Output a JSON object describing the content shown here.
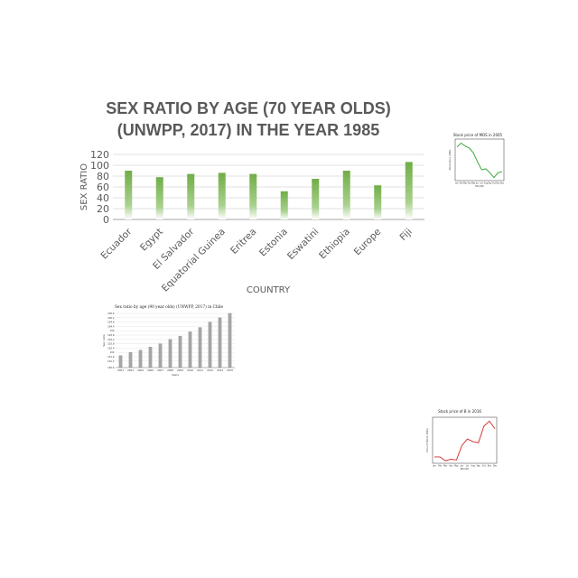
{
  "chart_data": [
    {
      "type": "bar",
      "title_line1": "SEX RATIO BY AGE (70 YEAR OLDS)",
      "title_line2": "(UNWPP, 2017) IN THE YEAR 1985",
      "xlabel": "COUNTRY",
      "ylabel": "SEX RATIO",
      "categories": [
        "Ecuador",
        "Egypt",
        "El Salvador",
        "Equatorial Guinea",
        "Eritrea",
        "Estonia",
        "Eswatini",
        "Ethiopia",
        "Europe",
        "Fiji"
      ],
      "values": [
        90,
        78,
        84,
        86,
        84,
        52,
        75,
        90,
        63,
        106
      ],
      "ylim": [
        0,
        120
      ],
      "yticks": [
        "0",
        "20",
        "40",
        "60",
        "80",
        "100",
        "120"
      ],
      "grid": true,
      "color": "#70ad47"
    },
    {
      "type": "line",
      "title": "Stock price of MOS in 2005",
      "xlabel": "Month",
      "ylabel": "Stock price (USD)",
      "x": [
        "Jan",
        "Feb",
        "Mar",
        "Apr",
        "May",
        "Jun",
        "Jul",
        "Aug",
        "Sep",
        "Oct",
        "Nov",
        "Dec"
      ],
      "values": [
        18.2,
        18.6,
        18.3,
        18.1,
        17.6,
        16.7,
        15.9,
        16.0,
        15.6,
        15.1,
        15.6,
        15.7
      ],
      "ylim": [
        14.8,
        19.0
      ],
      "color": "#2ca02c"
    },
    {
      "type": "bar",
      "title": "Sex ratio by age (90 year olds) (UNWPP, 2017) in Chile",
      "xlabel": "Years",
      "ylabel": "Sex ratio",
      "categories": [
        "2001",
        "2003",
        "2004",
        "2006",
        "2007",
        "2008",
        "2009",
        "2010",
        "2011",
        "2012",
        "2013",
        "2015"
      ],
      "values": [
        101.7,
        102.0,
        102.2,
        102.5,
        102.8,
        103.2,
        103.5,
        103.9,
        104.3,
        104.8,
        105.2,
        105.6
      ],
      "yticks": [
        "100.6",
        "101.2",
        "101.6",
        "102",
        "102.4",
        "102.8",
        "103.2",
        "103.6",
        "104",
        "104.4",
        "104.8",
        "105.2",
        "105.6"
      ],
      "ylim": [
        100.6,
        105.6
      ],
      "color": "#a6a6a6"
    },
    {
      "type": "line",
      "title": "Stock price of B in 2016",
      "xlabel": "Month",
      "ylabel": "Price of Stock (USD)",
      "x": [
        "Jan",
        "Feb",
        "Mar",
        "Apr",
        "May",
        "Jun",
        "Jul",
        "Aug",
        "Sep",
        "Oct",
        "Nov",
        "Dec"
      ],
      "values": [
        40.5,
        40.5,
        39.0,
        39.6,
        39.3,
        45.0,
        47.5,
        46.5,
        46.0,
        52.5,
        54.5,
        51.5
      ],
      "ylim": [
        38,
        56
      ],
      "color": "#d62728"
    }
  ]
}
